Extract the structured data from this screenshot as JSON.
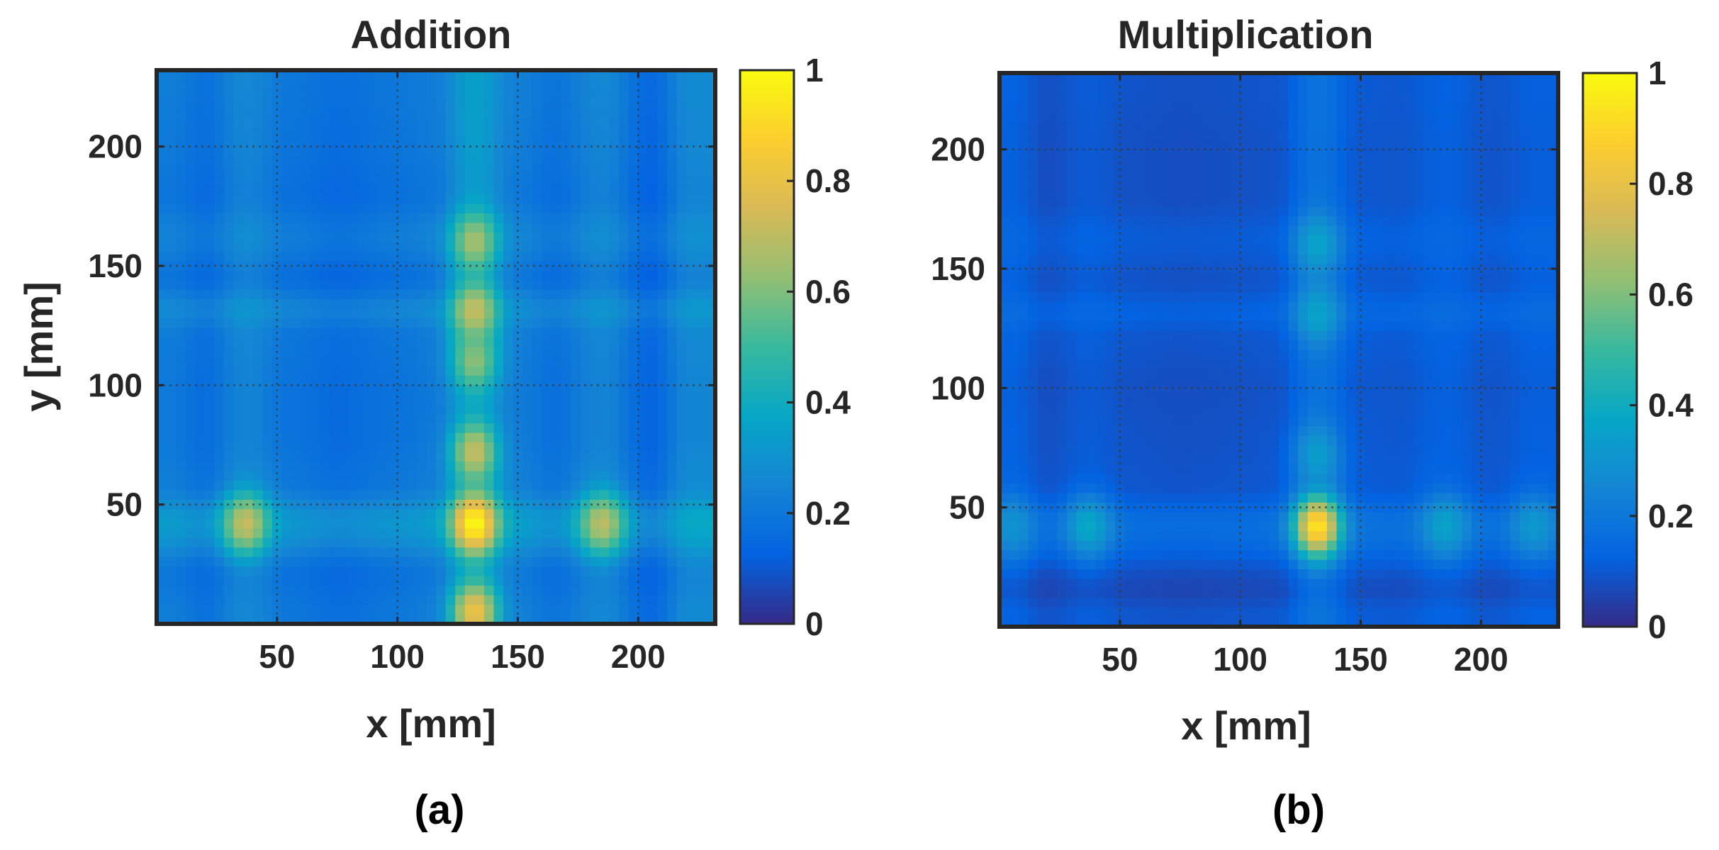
{
  "chart_data": [
    {
      "type": "heatmap",
      "title": "Addition",
      "panel_label": "(a)",
      "xlabel": "x [mm]",
      "ylabel": "y [mm]",
      "xlim": [
        0,
        232
      ],
      "ylim": [
        0,
        232
      ],
      "xticks": [
        50,
        100,
        150,
        200
      ],
      "yticks": [
        50,
        100,
        150,
        200
      ],
      "grid": true,
      "colormap": "parula",
      "colorbar": {
        "range": [
          0,
          1
        ],
        "ticks": [
          0,
          0.2,
          0.4,
          0.6,
          0.8,
          1
        ],
        "tick_labels": [
          "0",
          "0.2",
          "0.4",
          "0.6",
          "0.8",
          "1"
        ]
      },
      "column_profile": [
        {
          "x": 5,
          "v": 0.24
        },
        {
          "x": 20,
          "v": 0.16
        },
        {
          "x": 37,
          "v": 0.32
        },
        {
          "x": 55,
          "v": 0.2
        },
        {
          "x": 75,
          "v": 0.14
        },
        {
          "x": 100,
          "v": 0.2
        },
        {
          "x": 115,
          "v": 0.24
        },
        {
          "x": 132,
          "v": 0.5
        },
        {
          "x": 150,
          "v": 0.26
        },
        {
          "x": 165,
          "v": 0.18
        },
        {
          "x": 185,
          "v": 0.32
        },
        {
          "x": 205,
          "v": 0.1
        },
        {
          "x": 222,
          "v": 0.34
        }
      ],
      "row_profile": [
        {
          "y": 5,
          "v": 0.2
        },
        {
          "y": 20,
          "v": 0.16
        },
        {
          "y": 42,
          "v": 0.42
        },
        {
          "y": 60,
          "v": 0.2
        },
        {
          "y": 80,
          "v": 0.17
        },
        {
          "y": 100,
          "v": 0.17
        },
        {
          "y": 120,
          "v": 0.19
        },
        {
          "y": 131,
          "v": 0.3
        },
        {
          "y": 145,
          "v": 0.14
        },
        {
          "y": 162,
          "v": 0.24
        },
        {
          "y": 180,
          "v": 0.15
        },
        {
          "y": 200,
          "v": 0.18
        },
        {
          "y": 225,
          "v": 0.2
        }
      ],
      "hotspots": [
        {
          "x": 132,
          "y": 42,
          "v": 1.0
        },
        {
          "x": 132,
          "y": 5,
          "v": 0.82
        },
        {
          "x": 132,
          "y": 72,
          "v": 0.72
        },
        {
          "x": 132,
          "y": 131,
          "v": 0.72
        },
        {
          "x": 132,
          "y": 160,
          "v": 0.66
        },
        {
          "x": 132,
          "y": 110,
          "v": 0.62
        },
        {
          "x": 37,
          "y": 42,
          "v": 0.72
        },
        {
          "x": 185,
          "y": 42,
          "v": 0.7
        }
      ]
    },
    {
      "type": "heatmap",
      "title": "Multiplication",
      "panel_label": "(b)",
      "xlabel": "x [mm]",
      "ylabel": "",
      "xlim": [
        0,
        232
      ],
      "ylim": [
        0,
        232
      ],
      "xticks": [
        50,
        100,
        150,
        200
      ],
      "yticks": [
        50,
        100,
        150,
        200
      ],
      "grid": true,
      "colormap": "parula",
      "colorbar": {
        "range": [
          0,
          1
        ],
        "ticks": [
          0,
          0.2,
          0.4,
          0.6,
          0.8,
          1
        ],
        "tick_labels": [
          "0",
          "0.2",
          "0.4",
          "0.6",
          "0.8",
          "1"
        ]
      },
      "column_profile": [
        {
          "x": 5,
          "v": 0.16
        },
        {
          "x": 20,
          "v": 0.08
        },
        {
          "x": 37,
          "v": 0.13
        },
        {
          "x": 55,
          "v": 0.09
        },
        {
          "x": 75,
          "v": 0.08
        },
        {
          "x": 100,
          "v": 0.09
        },
        {
          "x": 115,
          "v": 0.1
        },
        {
          "x": 132,
          "v": 0.28
        },
        {
          "x": 150,
          "v": 0.12
        },
        {
          "x": 165,
          "v": 0.11
        },
        {
          "x": 185,
          "v": 0.16
        },
        {
          "x": 205,
          "v": 0.1
        },
        {
          "x": 222,
          "v": 0.15
        }
      ],
      "row_profile": [
        {
          "y": 5,
          "v": 0.1
        },
        {
          "y": 15,
          "v": 0.04
        },
        {
          "y": 42,
          "v": 0.24
        },
        {
          "y": 60,
          "v": 0.1
        },
        {
          "y": 80,
          "v": 0.09
        },
        {
          "y": 100,
          "v": 0.08
        },
        {
          "y": 120,
          "v": 0.1
        },
        {
          "y": 131,
          "v": 0.16
        },
        {
          "y": 145,
          "v": 0.09
        },
        {
          "y": 162,
          "v": 0.13
        },
        {
          "y": 180,
          "v": 0.08
        },
        {
          "y": 200,
          "v": 0.08
        },
        {
          "y": 225,
          "v": 0.09
        }
      ],
      "hotspots": [
        {
          "x": 132,
          "y": 42,
          "v": 0.95
        },
        {
          "x": 132,
          "y": 160,
          "v": 0.36
        },
        {
          "x": 132,
          "y": 131,
          "v": 0.36
        },
        {
          "x": 132,
          "y": 72,
          "v": 0.34
        },
        {
          "x": 37,
          "y": 42,
          "v": 0.38
        },
        {
          "x": 185,
          "y": 42,
          "v": 0.36
        },
        {
          "x": 222,
          "y": 42,
          "v": 0.32
        },
        {
          "x": 5,
          "y": 42,
          "v": 0.3
        }
      ]
    }
  ]
}
